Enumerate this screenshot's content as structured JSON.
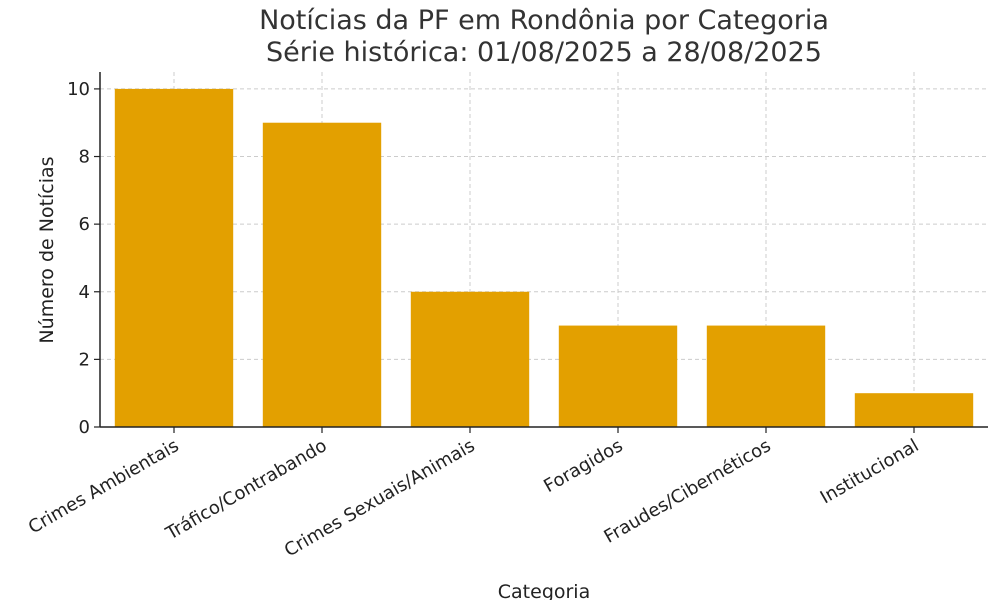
{
  "chart_data": {
    "type": "bar",
    "title": "Notícias da PF em Rondônia por Categoria",
    "subtitle": "Série histórica: 01/08/2025 a 28/08/2025",
    "xlabel": "Categoria",
    "ylabel": "Número de Notícias",
    "categories": [
      "Crimes Ambientais",
      "Tráfico/Contrabando",
      "Crimes Sexuais/Animais",
      "Foragidos",
      "Fraudes/Cibernéticos",
      "Institucional"
    ],
    "values": [
      10,
      9,
      4,
      3,
      3,
      1
    ],
    "ylim": [
      0,
      10.5
    ],
    "yticks": [
      0,
      2,
      4,
      6,
      8,
      10
    ],
    "grid": true,
    "bar_color": "#E3A000"
  }
}
